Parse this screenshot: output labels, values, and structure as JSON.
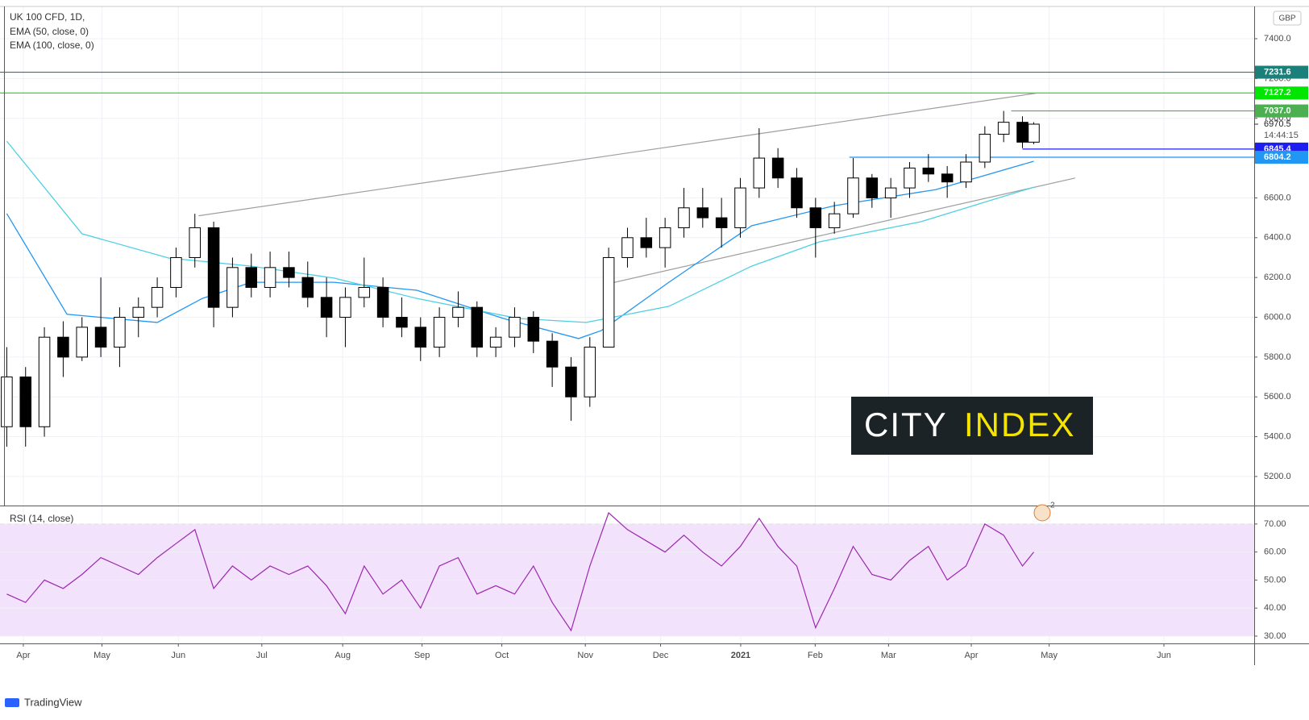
{
  "chart_data": [
    {
      "type": "candlestick",
      "title": "UK 100 CFD, 1D,",
      "currency": "GBP",
      "up_color": "#ffffff",
      "down_color": "#000000",
      "edge_color": "#000000",
      "x": [
        0,
        5,
        10,
        15,
        20,
        25,
        30,
        35,
        40,
        45,
        50,
        55,
        60,
        65,
        70,
        75,
        80,
        85,
        90,
        95,
        100,
        105,
        110,
        115,
        120,
        125,
        130,
        135,
        140,
        145,
        150,
        155,
        160,
        165,
        170,
        175,
        180,
        185,
        190,
        195,
        200,
        205,
        210,
        215,
        220,
        225,
        230,
        235,
        240,
        245,
        250,
        255,
        260,
        265,
        270,
        273
      ],
      "open": [
        5450,
        5700,
        5450,
        5900,
        5800,
        5950,
        5850,
        6000,
        6050,
        6150,
        6300,
        6450,
        6050,
        6250,
        6150,
        6250,
        6200,
        6100,
        6000,
        6100,
        6150,
        6000,
        5950,
        5850,
        6000,
        6050,
        5850,
        5900,
        6000,
        5880,
        5750,
        5600,
        5850,
        6300,
        6400,
        6350,
        6450,
        6550,
        6500,
        6450,
        6650,
        6800,
        6700,
        6550,
        6450,
        6520,
        6700,
        6600,
        6650,
        6750,
        6720,
        6680,
        6780,
        6920,
        6980,
        6880
      ],
      "high": [
        5850,
        5750,
        5950,
        5980,
        6000,
        6200,
        6050,
        6100,
        6200,
        6350,
        6520,
        6480,
        6300,
        6320,
        6330,
        6330,
        6280,
        6200,
        6150,
        6300,
        6200,
        6100,
        6000,
        6050,
        6130,
        6080,
        5950,
        6050,
        6030,
        5920,
        5800,
        5900,
        6350,
        6450,
        6500,
        6500,
        6650,
        6650,
        6600,
        6700,
        6950,
        6850,
        6750,
        6600,
        6580,
        6800,
        6720,
        6700,
        6780,
        6820,
        6760,
        6820,
        6960,
        7037,
        7010,
        6980
      ],
      "low": [
        5350,
        5350,
        5400,
        5700,
        5780,
        5800,
        5750,
        5900,
        6000,
        6100,
        6250,
        5950,
        6000,
        6100,
        6100,
        6150,
        6050,
        5900,
        5850,
        6050,
        5950,
        5900,
        5780,
        5800,
        5950,
        5800,
        5800,
        5850,
        5820,
        5650,
        5480,
        5550,
        5850,
        6250,
        6300,
        6250,
        6400,
        6450,
        6350,
        6400,
        6600,
        6650,
        6500,
        6300,
        6420,
        6500,
        6550,
        6500,
        6600,
        6680,
        6600,
        6650,
        6750,
        6880,
        6850,
        6870
      ],
      "close": [
        5700,
        5450,
        5900,
        5800,
        5950,
        5850,
        6000,
        6050,
        6150,
        6300,
        6450,
        6050,
        6250,
        6150,
        6250,
        6200,
        6100,
        6000,
        6100,
        6150,
        6000,
        5950,
        5850,
        6000,
        6050,
        5850,
        5900,
        6000,
        5880,
        5750,
        5600,
        5850,
        6300,
        6400,
        6350,
        6450,
        6550,
        6500,
        6450,
        6650,
        6800,
        6700,
        6550,
        6450,
        6520,
        6700,
        6600,
        6650,
        6750,
        6720,
        6680,
        6780,
        6920,
        6980,
        6880,
        6970.5
      ],
      "series": [
        {
          "name": "EMA (50, close, 0)",
          "color": "#2196f3",
          "x": [
            0,
            16,
            40,
            52,
            65,
            87,
            109,
            132,
            152,
            158,
            176,
            198,
            220,
            247,
            273
          ],
          "values": [
            6521,
            6015,
            5974,
            6095,
            6176,
            6176,
            6136,
            5994,
            5893,
            5933,
            6176,
            6460,
            6561,
            6642,
            6784
          ]
        },
        {
          "name": "EMA (100, close, 0)",
          "color": "#4dd0e1",
          "x": [
            0,
            20,
            43,
            65,
            87,
            109,
            136,
            154,
            176,
            198,
            216,
            243,
            273
          ],
          "values": [
            6885,
            6420,
            6298,
            6257,
            6197,
            6095,
            5994,
            5974,
            6055,
            6257,
            6379,
            6480,
            6654
          ]
        }
      ],
      "trendlines": [
        {
          "color": "#9e9e9e",
          "x": [
            51,
            274
          ],
          "values": [
            6510,
            7127
          ]
        },
        {
          "color": "#9e9e9e",
          "x": [
            159,
            284
          ],
          "values": [
            6165,
            6700
          ]
        }
      ],
      "levels": [
        {
          "value": 7231.6,
          "color": "#1b7f7a"
        },
        {
          "value": 7127.2,
          "label": "7127.2",
          "color": "#00e600"
        },
        {
          "value": 7037,
          "label": "7037.0",
          "color": "#4caf50",
          "x": 267
        },
        {
          "value": 6845.4,
          "color": "#1e1ef0",
          "x": 270
        },
        {
          "value": 6804.2,
          "color": "#2196f3",
          "x": 224
        }
      ],
      "last_price": 6970.5,
      "countdown": "14:44:15",
      "event_marker": "2",
      "xlim": [
        -1.8,
        331.6
      ],
      "xticks": [
        {
          "value": 4.4,
          "label": "Apr"
        },
        {
          "value": 25.3,
          "label": "May"
        },
        {
          "value": 45.6,
          "label": "Jun"
        },
        {
          "value": 67.8,
          "label": "Jul"
        },
        {
          "value": 89.3,
          "label": "Aug"
        },
        {
          "value": 110.4,
          "label": "Sep"
        },
        {
          "value": 131.6,
          "label": "Oct"
        },
        {
          "value": 153.8,
          "label": "Nov"
        },
        {
          "value": 173.8,
          "label": "Dec"
        },
        {
          "value": 195.1,
          "label": "2021"
        },
        {
          "value": 214.9,
          "label": "Feb"
        },
        {
          "value": 234.4,
          "label": "Mar"
        },
        {
          "value": 256.4,
          "label": "Apr"
        },
        {
          "value": 277.1,
          "label": "May"
        },
        {
          "value": 307.6,
          "label": "Jun"
        }
      ],
      "ylim": [
        5054,
        7562
      ],
      "yticks": [
        {
          "value": 5200,
          "label": "5200.0"
        },
        {
          "value": 5400,
          "label": "5400.0"
        },
        {
          "value": 5600,
          "label": "5600.0"
        },
        {
          "value": 5800,
          "label": "5800.0"
        },
        {
          "value": 6000,
          "label": "6000.0"
        },
        {
          "value": 6200,
          "label": "6200.0"
        },
        {
          "value": 6400,
          "label": "6400.0"
        },
        {
          "value": 6600,
          "label": "6600.0"
        },
        {
          "value": 6800,
          "label": "6800.0"
        },
        {
          "value": 7000,
          "label": "7000.0"
        },
        {
          "value": 7200,
          "label": "7200.0"
        },
        {
          "value": 7400,
          "label": "7400.0"
        }
      ],
      "grid": true
    },
    {
      "type": "line",
      "title": "RSI (14, close)",
      "color": "#9c27b0",
      "band": [
        30,
        70
      ],
      "band_color": "#f3e2fb",
      "x": [
        0,
        5,
        10,
        15,
        20,
        25,
        30,
        35,
        40,
        45,
        50,
        55,
        60,
        65,
        70,
        75,
        80,
        85,
        90,
        95,
        100,
        105,
        110,
        115,
        120,
        125,
        130,
        135,
        140,
        145,
        150,
        155,
        160,
        165,
        170,
        175,
        180,
        185,
        190,
        195,
        200,
        205,
        210,
        215,
        220,
        225,
        230,
        235,
        240,
        245,
        250,
        255,
        260,
        265,
        270,
        273
      ],
      "values": [
        45,
        42,
        50,
        47,
        52,
        58,
        55,
        52,
        58,
        63,
        68,
        47,
        55,
        50,
        55,
        52,
        55,
        48,
        38,
        55,
        45,
        50,
        40,
        55,
        58,
        45,
        48,
        45,
        55,
        42,
        32,
        55,
        74,
        68,
        64,
        60,
        66,
        60,
        55,
        62,
        72,
        62,
        55,
        33,
        47,
        62,
        52,
        50,
        57,
        62,
        50,
        55,
        70,
        66,
        55,
        60
      ],
      "xlim": [
        -1.8,
        331.6
      ],
      "ylim": [
        27.4,
        76.3
      ],
      "yticks": [
        {
          "value": 30,
          "label": "30.00"
        },
        {
          "value": 40,
          "label": "40.00"
        },
        {
          "value": 50,
          "label": "50.00"
        },
        {
          "value": 60,
          "label": "60.00"
        },
        {
          "value": 70,
          "label": "70.00"
        }
      ],
      "grid": true
    }
  ],
  "brand": {
    "watermark_left": "CITY",
    "watermark_right": "INDEX",
    "footer": "TradingView"
  }
}
